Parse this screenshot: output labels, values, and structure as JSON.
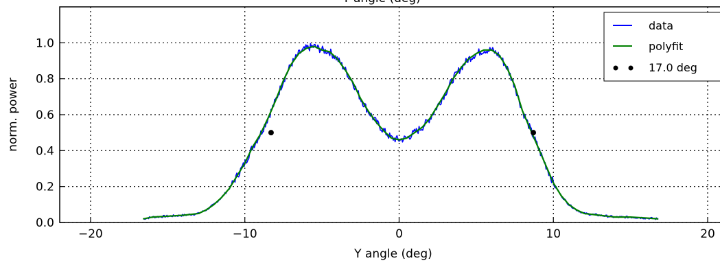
{
  "chart_data": {
    "type": "line",
    "title": "Y angle (deg)",
    "xlabel": "Y angle (deg)",
    "ylabel": "norm. power",
    "xlim": [
      -22,
      20.8
    ],
    "ylim": [
      0,
      1.2
    ],
    "x_ticks": [
      -20,
      -10,
      0,
      10,
      20
    ],
    "x_tick_labels": [
      "−20",
      "−10",
      "0",
      "10",
      "20"
    ],
    "y_ticks": [
      0.0,
      0.2,
      0.4,
      0.6,
      0.8,
      1.0
    ],
    "y_tick_labels": [
      "0.0",
      "0.2",
      "0.4",
      "0.6",
      "0.8",
      "1.0"
    ],
    "grid": true,
    "legend_position": "top-right",
    "series": [
      {
        "name": "data",
        "color": "#0000ff",
        "noisy": true,
        "x": [
          -16.6,
          -16,
          -15,
          -14,
          -13,
          -12.5,
          -12,
          -11.5,
          -11,
          -10.5,
          -10,
          -9.5,
          -9,
          -8.5,
          -8.2,
          -8,
          -7.5,
          -7,
          -6.5,
          -6,
          -5.5,
          -5,
          -4.5,
          -4,
          -3.5,
          -3,
          -2.5,
          -2,
          -1.5,
          -1,
          -0.5,
          0,
          0.5,
          1,
          1.5,
          2,
          2.5,
          3,
          3.5,
          4,
          4.5,
          5,
          5.5,
          6,
          6.5,
          7,
          7.5,
          8,
          8.5,
          8.8,
          9,
          9.5,
          10,
          10.5,
          11,
          11.5,
          12,
          13,
          14,
          15,
          16,
          16.8
        ],
        "y": [
          0.02,
          0.03,
          0.035,
          0.04,
          0.05,
          0.07,
          0.1,
          0.14,
          0.19,
          0.26,
          0.33,
          0.42,
          0.49,
          0.58,
          0.64,
          0.68,
          0.79,
          0.88,
          0.94,
          0.97,
          0.98,
          0.96,
          0.95,
          0.91,
          0.85,
          0.78,
          0.69,
          0.62,
          0.56,
          0.51,
          0.47,
          0.46,
          0.47,
          0.5,
          0.53,
          0.58,
          0.65,
          0.72,
          0.8,
          0.86,
          0.91,
          0.94,
          0.96,
          0.96,
          0.93,
          0.86,
          0.76,
          0.62,
          0.52,
          0.46,
          0.42,
          0.32,
          0.22,
          0.15,
          0.1,
          0.07,
          0.05,
          0.04,
          0.03,
          0.03,
          0.025,
          0.02
        ]
      },
      {
        "name": "polyfit",
        "color": "#008000",
        "x": [
          -16.6,
          -16,
          -15,
          -14,
          -13,
          -12.5,
          -12,
          -11.5,
          -11,
          -10.5,
          -10,
          -9.5,
          -9,
          -8.5,
          -8.2,
          -8,
          -7.5,
          -7,
          -6.5,
          -6,
          -5.5,
          -5,
          -4.5,
          -4,
          -3.5,
          -3,
          -2.5,
          -2,
          -1.5,
          -1,
          -0.5,
          0,
          0.5,
          1,
          1.5,
          2,
          2.5,
          3,
          3.5,
          4,
          4.5,
          5,
          5.5,
          6,
          6.5,
          7,
          7.5,
          8,
          8.5,
          8.8,
          9,
          9.5,
          10,
          10.5,
          11,
          11.5,
          12,
          13,
          14,
          15,
          16,
          16.8
        ],
        "y": [
          0.02,
          0.03,
          0.035,
          0.04,
          0.05,
          0.07,
          0.1,
          0.14,
          0.19,
          0.26,
          0.33,
          0.42,
          0.49,
          0.58,
          0.64,
          0.68,
          0.79,
          0.88,
          0.94,
          0.97,
          0.98,
          0.96,
          0.95,
          0.91,
          0.85,
          0.78,
          0.69,
          0.62,
          0.56,
          0.51,
          0.47,
          0.46,
          0.47,
          0.5,
          0.53,
          0.58,
          0.65,
          0.72,
          0.8,
          0.86,
          0.91,
          0.94,
          0.96,
          0.96,
          0.93,
          0.86,
          0.76,
          0.62,
          0.52,
          0.46,
          0.42,
          0.32,
          0.22,
          0.15,
          0.1,
          0.07,
          0.05,
          0.04,
          0.03,
          0.03,
          0.025,
          0.02
        ]
      },
      {
        "name": "17.0 deg",
        "type": "scatter",
        "color": "#000000",
        "x": [
          -8.3,
          8.7
        ],
        "y": [
          0.5,
          0.5
        ]
      }
    ]
  }
}
